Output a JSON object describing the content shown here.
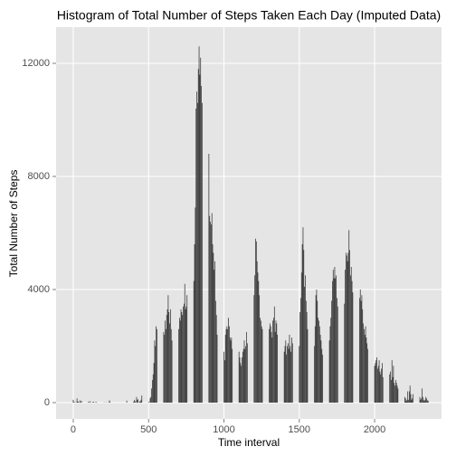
{
  "chart_data": {
    "type": "bar",
    "title": "Histogram of Total Number of Steps Taken Each Day (Imputed Data)",
    "xlabel": "Time interval",
    "ylabel": "Total Number of Steps",
    "color": "#333333",
    "grid": true,
    "xlim": [
      -114,
      2444
    ],
    "ylim": [
      -576,
      13280
    ],
    "xticks": [
      0,
      500,
      1000,
      1500,
      2000
    ],
    "yticks": [
      0,
      4000,
      8000,
      12000
    ],
    "x": [
      0,
      5,
      10,
      15,
      20,
      25,
      30,
      35,
      40,
      45,
      50,
      55,
      100,
      105,
      110,
      115,
      120,
      125,
      130,
      135,
      140,
      145,
      150,
      155,
      200,
      205,
      210,
      215,
      220,
      225,
      230,
      235,
      240,
      245,
      250,
      255,
      300,
      305,
      310,
      315,
      320,
      325,
      330,
      335,
      340,
      345,
      350,
      355,
      400,
      405,
      410,
      415,
      420,
      425,
      430,
      435,
      440,
      445,
      450,
      455,
      500,
      505,
      510,
      515,
      520,
      525,
      530,
      535,
      540,
      545,
      550,
      555,
      600,
      605,
      610,
      615,
      620,
      625,
      630,
      635,
      640,
      645,
      650,
      655,
      700,
      705,
      710,
      715,
      720,
      725,
      730,
      735,
      740,
      745,
      750,
      755,
      800,
      805,
      810,
      815,
      820,
      825,
      830,
      835,
      840,
      845,
      850,
      855,
      900,
      905,
      910,
      915,
      920,
      925,
      930,
      935,
      940,
      945,
      950,
      955,
      1000,
      1005,
      1010,
      1015,
      1020,
      1025,
      1030,
      1035,
      1040,
      1045,
      1050,
      1055,
      1100,
      1105,
      1110,
      1115,
      1120,
      1125,
      1130,
      1135,
      1140,
      1145,
      1150,
      1155,
      1200,
      1205,
      1210,
      1215,
      1220,
      1225,
      1230,
      1235,
      1240,
      1245,
      1250,
      1255,
      1300,
      1305,
      1310,
      1315,
      1320,
      1325,
      1330,
      1335,
      1340,
      1345,
      1350,
      1355,
      1400,
      1405,
      1410,
      1415,
      1420,
      1425,
      1430,
      1435,
      1440,
      1445,
      1450,
      1455,
      1500,
      1505,
      1510,
      1515,
      1520,
      1525,
      1530,
      1535,
      1540,
      1545,
      1550,
      1555,
      1600,
      1605,
      1610,
      1615,
      1620,
      1625,
      1630,
      1635,
      1640,
      1645,
      1650,
      1655,
      1700,
      1705,
      1710,
      1715,
      1720,
      1725,
      1730,
      1735,
      1740,
      1745,
      1750,
      1755,
      1800,
      1805,
      1810,
      1815,
      1820,
      1825,
      1830,
      1835,
      1840,
      1845,
      1850,
      1855,
      1900,
      1905,
      1910,
      1915,
      1920,
      1925,
      1930,
      1935,
      1940,
      1945,
      1950,
      1955,
      2000,
      2005,
      2010,
      2015,
      2020,
      2025,
      2030,
      2035,
      2040,
      2045,
      2050,
      2055,
      2100,
      2105,
      2110,
      2115,
      2120,
      2125,
      2130,
      2135,
      2140,
      2145,
      2150,
      2155,
      2200,
      2205,
      2210,
      2215,
      2220,
      2225,
      2230,
      2235,
      2240,
      2245,
      2250,
      2255,
      2300,
      2305,
      2310,
      2315,
      2320,
      2325,
      2330,
      2335,
      2340,
      2345,
      2350,
      2355
    ],
    "values": [
      100,
      20,
      10,
      10,
      5,
      150,
      30,
      40,
      0,
      80,
      20,
      60,
      30,
      10,
      50,
      0,
      10,
      0,
      20,
      30,
      0,
      10,
      10,
      20,
      0,
      10,
      0,
      0,
      10,
      0,
      0,
      10,
      80,
      20,
      0,
      0,
      0,
      0,
      0,
      0,
      0,
      0,
      0,
      0,
      0,
      0,
      0,
      70,
      30,
      100,
      50,
      0,
      200,
      100,
      120,
      0,
      50,
      30,
      100,
      250,
      30,
      0,
      150,
      200,
      500,
      800,
      1000,
      1400,
      2200,
      2000,
      2700,
      2600,
      2500,
      2400,
      2900,
      2600,
      3100,
      3300,
      3800,
      3200,
      2800,
      3300,
      2600,
      2200,
      2600,
      3000,
      2900,
      3300,
      3200,
      3100,
      3400,
      3500,
      4200,
      3300,
      3400,
      3800,
      4300,
      5600,
      6900,
      10400,
      11000,
      10600,
      11800,
      12600,
      11600,
      12200,
      11200,
      10600,
      8800,
      6600,
      6400,
      6300,
      6700,
      5600,
      5300,
      4700,
      5000,
      3600,
      3100,
      2400,
      1800,
      1500,
      2400,
      2600,
      2700,
      2600,
      3000,
      2700,
      2300,
      2200,
      2300,
      1900,
      1800,
      1600,
      1400,
      1300,
      1600,
      1800,
      1900,
      2200,
      1900,
      2000,
      2500,
      2100,
      3800,
      4500,
      5800,
      5700,
      5000,
      4600,
      4300,
      3800,
      3000,
      2900,
      2700,
      2600,
      2600,
      2800,
      2700,
      2500,
      2300,
      2900,
      3000,
      3400,
      2500,
      2900,
      2800,
      2400,
      1800,
      2000,
      2200,
      1700,
      2000,
      2100,
      1900,
      2400,
      2000,
      1800,
      2300,
      2100,
      2000,
      3200,
      3700,
      4600,
      5600,
      6200,
      5400,
      4100,
      4500,
      3600,
      3200,
      2600,
      2000,
      2700,
      3800,
      4000,
      3600,
      3000,
      2900,
      2700,
      2400,
      2200,
      1900,
      1700,
      2200,
      2700,
      3000,
      3600,
      4300,
      4700,
      4400,
      4800,
      4400,
      4500,
      3700,
      3400,
      3500,
      4700,
      5300,
      5200,
      5000,
      5300,
      6100,
      5400,
      4500,
      4800,
      4300,
      3900,
      3700,
      4000,
      3600,
      3800,
      3300,
      2800,
      2600,
      2400,
      2700,
      2300,
      2100,
      1900,
      1300,
      1400,
      1500,
      1600,
      1200,
      1300,
      1500,
      1100,
      1000,
      1200,
      1400,
      900,
      1000,
      1100,
      800,
      1500,
      900,
      1300,
      700,
      600,
      800,
      700,
      600,
      500,
      200,
      150,
      50,
      100,
      400,
      100,
      400,
      600,
      300,
      100,
      150,
      300,
      200,
      100,
      150,
      500,
      200,
      100,
      50,
      100,
      200,
      150,
      80,
      70
    ]
  }
}
